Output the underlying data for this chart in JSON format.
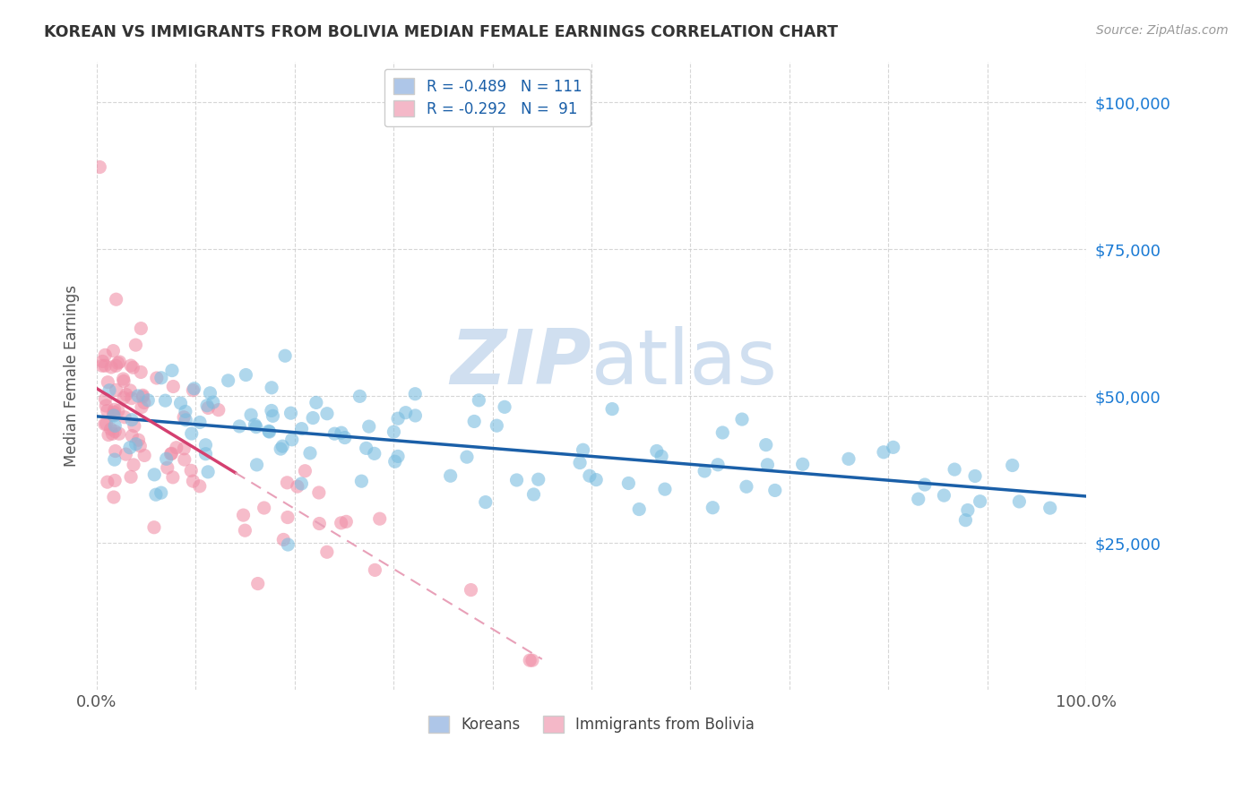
{
  "title": "KOREAN VS IMMIGRANTS FROM BOLIVIA MEDIAN FEMALE EARNINGS CORRELATION CHART",
  "source": "Source: ZipAtlas.com",
  "ylabel": "Median Female Earnings",
  "ytick_labels": [
    "$25,000",
    "$50,000",
    "$75,000",
    "$100,000"
  ],
  "ytick_values": [
    25000,
    50000,
    75000,
    100000
  ],
  "ylim": [
    0,
    107000
  ],
  "xlim": [
    0,
    1.0
  ],
  "legend_label_koreans": "Koreans",
  "legend_label_bolivia": "Immigrants from Bolivia",
  "korean_color": "#7bbde0",
  "bolivia_color": "#f090a8",
  "korean_trend_color": "#1a5fa8",
  "bolivia_trend_solid_color": "#d44070",
  "bolivia_trend_dashed_color": "#e8a0b8",
  "watermark_zip": "ZIP",
  "watermark_atlas": "atlas",
  "watermark_color": "#d0dff0",
  "background_color": "#ffffff",
  "grid_color": "#cccccc",
  "title_color": "#333333",
  "right_ytick_color": "#1a7ad4",
  "korean_r": -0.489,
  "korean_n": 111,
  "bolivia_r": -0.292,
  "bolivia_n": 91
}
